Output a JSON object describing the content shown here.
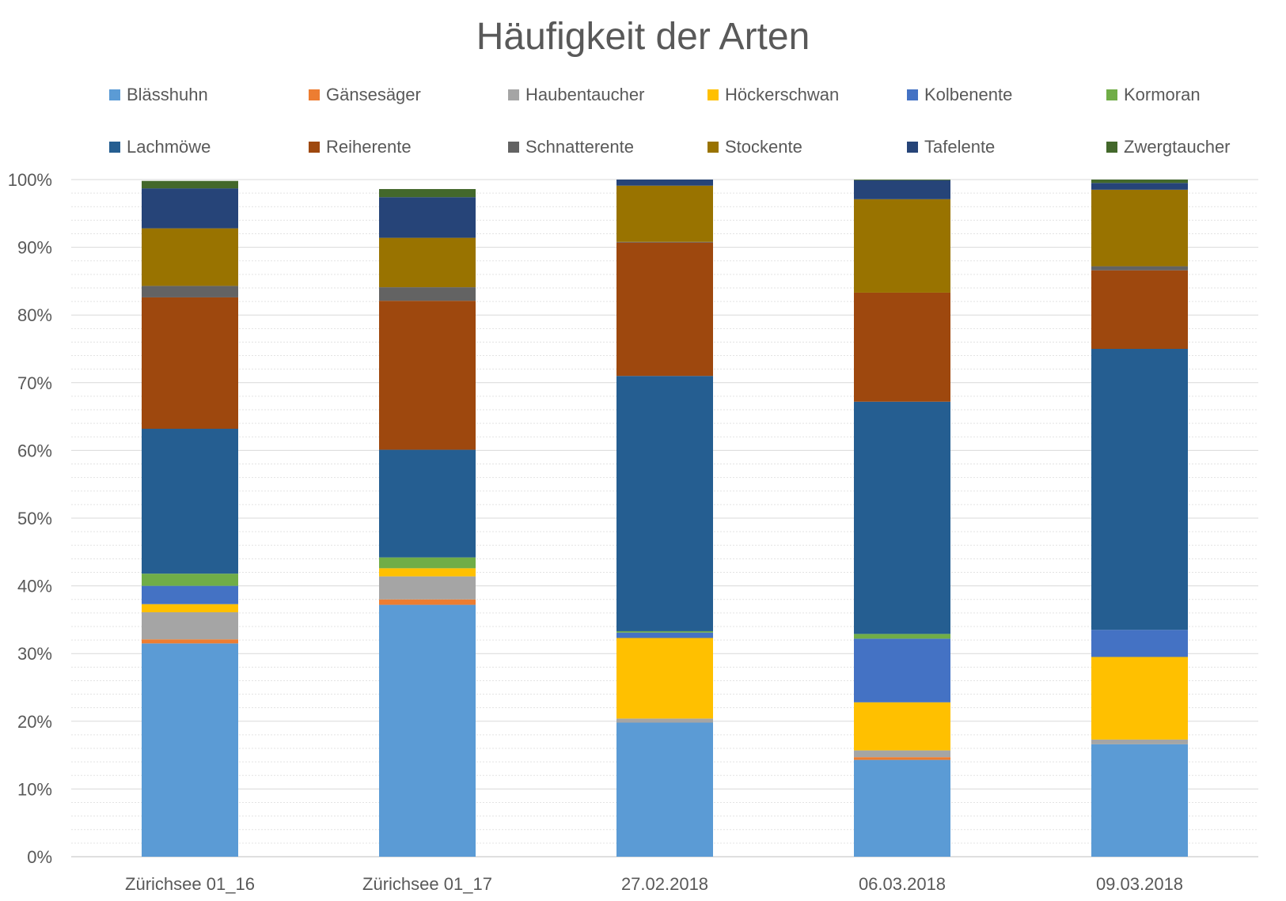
{
  "chart_data": {
    "type": "bar",
    "stacked": true,
    "percent": true,
    "title": "Häufigkeit der Arten",
    "xlabel": "",
    "ylabel": "",
    "ylim": [
      0,
      100
    ],
    "y_ticks": [
      "0%",
      "10%",
      "20%",
      "30%",
      "40%",
      "50%",
      "60%",
      "70%",
      "80%",
      "90%",
      "100%"
    ],
    "grid": true,
    "legend_position": "top",
    "categories": [
      "Zürichsee 01_16",
      "Zürichsee 01_17",
      "27.02.2018",
      "06.03.2018",
      "09.03.2018"
    ],
    "series": [
      {
        "name": "Blässhuhn",
        "color": "#5b9bd5",
        "values": [
          31.5,
          37.2,
          19.8,
          14.3,
          16.6
        ]
      },
      {
        "name": "Gänsesäger",
        "color": "#ed7d31",
        "values": [
          0.6,
          0.8,
          0.0,
          0.4,
          0.0
        ]
      },
      {
        "name": "Haubentaucher",
        "color": "#a5a5a5",
        "values": [
          4.0,
          3.4,
          0.6,
          1.0,
          0.7
        ]
      },
      {
        "name": "Höckerschwan",
        "color": "#ffc000",
        "values": [
          1.2,
          1.2,
          11.9,
          7.1,
          12.2
        ]
      },
      {
        "name": "Kolbenente",
        "color": "#4472c4",
        "values": [
          2.7,
          0.0,
          0.8,
          9.4,
          4.0
        ]
      },
      {
        "name": "Kormoran",
        "color": "#70ad47",
        "values": [
          1.8,
          1.6,
          0.2,
          0.7,
          0.0
        ]
      },
      {
        "name": "Lachmöwe",
        "color": "#255e91",
        "values": [
          21.4,
          15.9,
          37.7,
          34.3,
          41.5
        ]
      },
      {
        "name": "Reiherente",
        "color": "#9e480e",
        "values": [
          19.4,
          22.0,
          19.7,
          16.1,
          11.6
        ]
      },
      {
        "name": "Schnatterente",
        "color": "#636363",
        "values": [
          1.7,
          2.0,
          0.1,
          0.0,
          0.6
        ]
      },
      {
        "name": "Stockente",
        "color": "#997300",
        "values": [
          8.5,
          7.3,
          8.3,
          13.8,
          11.3
        ]
      },
      {
        "name": "Tafelente",
        "color": "#264478",
        "values": [
          5.9,
          6.0,
          0.9,
          2.8,
          1.0
        ]
      },
      {
        "name": "Zwergtaucher",
        "color": "#43682b",
        "values": [
          1.1,
          1.2,
          0.0,
          0.1,
          0.5
        ]
      }
    ]
  }
}
